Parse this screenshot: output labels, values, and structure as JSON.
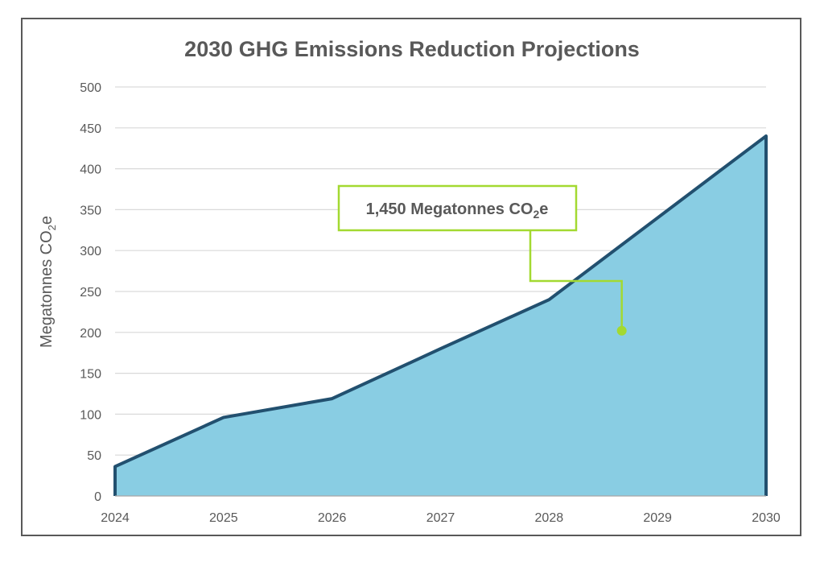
{
  "chart_data": {
    "type": "area",
    "title": "2030 GHG Emissions Reduction Projections",
    "xlabel": "",
    "ylabel": "Megatonnes CO",
    "ylabel_subscript": "2",
    "ylabel_suffix": "e",
    "x": [
      "2024",
      "2025",
      "2026",
      "2027",
      "2028",
      "2029",
      "2030"
    ],
    "values": [
      36,
      96,
      119,
      180,
      240,
      340,
      440
    ],
    "ylim": [
      0,
      500
    ],
    "yticks": [
      0,
      50,
      100,
      150,
      200,
      250,
      300,
      350,
      400,
      450,
      500
    ],
    "grid": true,
    "legend": "none",
    "annotation": {
      "text": "1,450 Megatonnes CO",
      "subscript": "2",
      "suffix": "e",
      "x": 2028.67,
      "y": 202
    },
    "colors": {
      "fill": "#89cde3",
      "line": "#22506f",
      "grid": "#d9d9d9",
      "callout": "#a3d931",
      "text": "#595959"
    }
  }
}
